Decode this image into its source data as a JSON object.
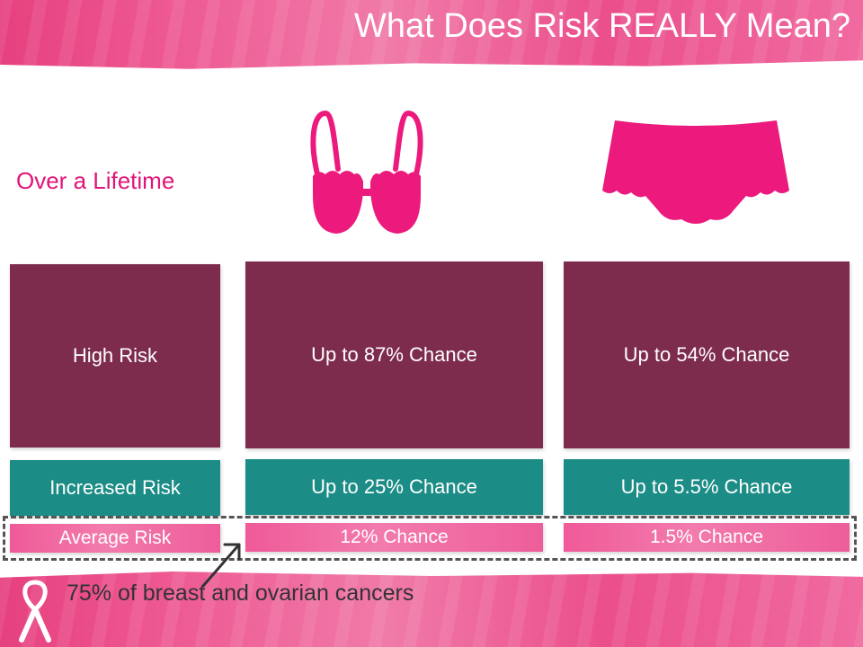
{
  "slide": {
    "title": "What Does Risk REALLY Mean?",
    "subtitle": "Over a Lifetime",
    "note": "75% of breast and ovarian cancers"
  },
  "icons": {
    "breast": "bra-icon",
    "ovarian": "panty-icon",
    "arrow": "arrow-icon",
    "ribbon": "pink-ribbon-icon"
  },
  "colors": {
    "high": "#7d2c4d",
    "increased": "#1c8c86",
    "average": "#f06aa0",
    "accent": "#e0157a"
  },
  "rows": {
    "labels": [
      "High Risk",
      "Increased Risk",
      "Average Risk"
    ],
    "breast": [
      "Up to 87% Chance",
      "Up to 25% Chance",
      "12% Chance"
    ],
    "ovarian": [
      "Up to 54% Chance",
      "Up to 5.5% Chance",
      "1.5% Chance"
    ]
  }
}
